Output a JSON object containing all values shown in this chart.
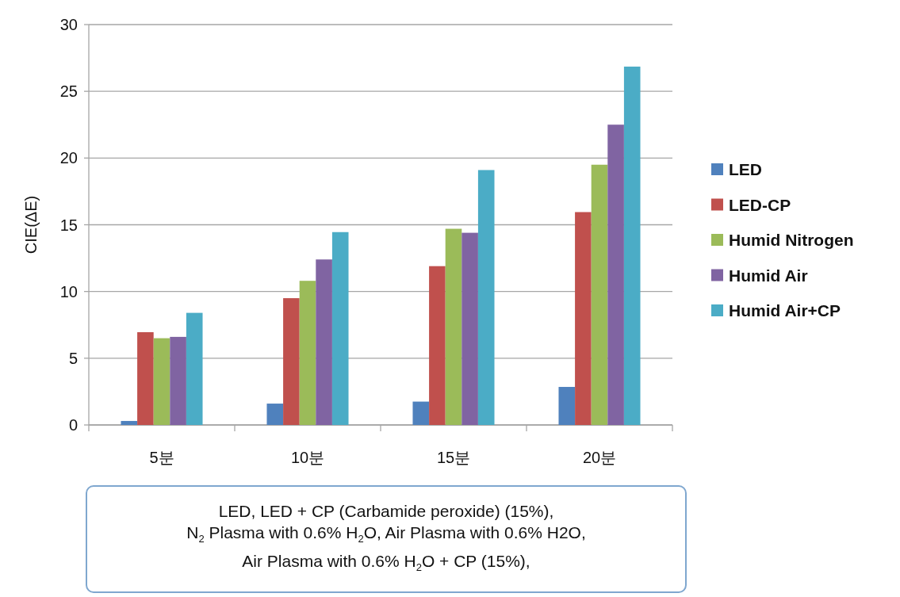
{
  "chart_data": {
    "type": "bar",
    "ylabel": "CIE(ΔE)",
    "categories": [
      "5분",
      "10분",
      "15분",
      "20분"
    ],
    "series": [
      {
        "name": "LED",
        "color": "#4f81bd",
        "values": [
          0.3,
          1.6,
          1.75,
          2.85
        ]
      },
      {
        "name": "LED-CP",
        "color": "#c0504d",
        "values": [
          6.95,
          9.5,
          11.9,
          15.95
        ]
      },
      {
        "name": "Humid Nitrogen",
        "color": "#9bbb59",
        "values": [
          6.5,
          10.8,
          14.7,
          19.5
        ]
      },
      {
        "name": "Humid Air",
        "color": "#8064a2",
        "values": [
          6.6,
          12.4,
          14.4,
          22.5
        ]
      },
      {
        "name": "Humid Air+CP",
        "color": "#4bacc6",
        "values": [
          8.4,
          14.45,
          19.1,
          26.85
        ]
      }
    ],
    "ylim": [
      0,
      30
    ],
    "yticks": [
      0,
      5,
      10,
      15,
      20,
      25,
      30
    ],
    "grid": "y",
    "legend": "right",
    "annotations": [
      "LED, LED + CP (Carbamide peroxide) (15%),",
      "N$_{2}$ Plasma with 0.6% H$_{2}$O, Air Plasma with 0.6% H2O,",
      "Air Plasma with 0.6% H$_{2}$O + CP (15%),"
    ]
  }
}
